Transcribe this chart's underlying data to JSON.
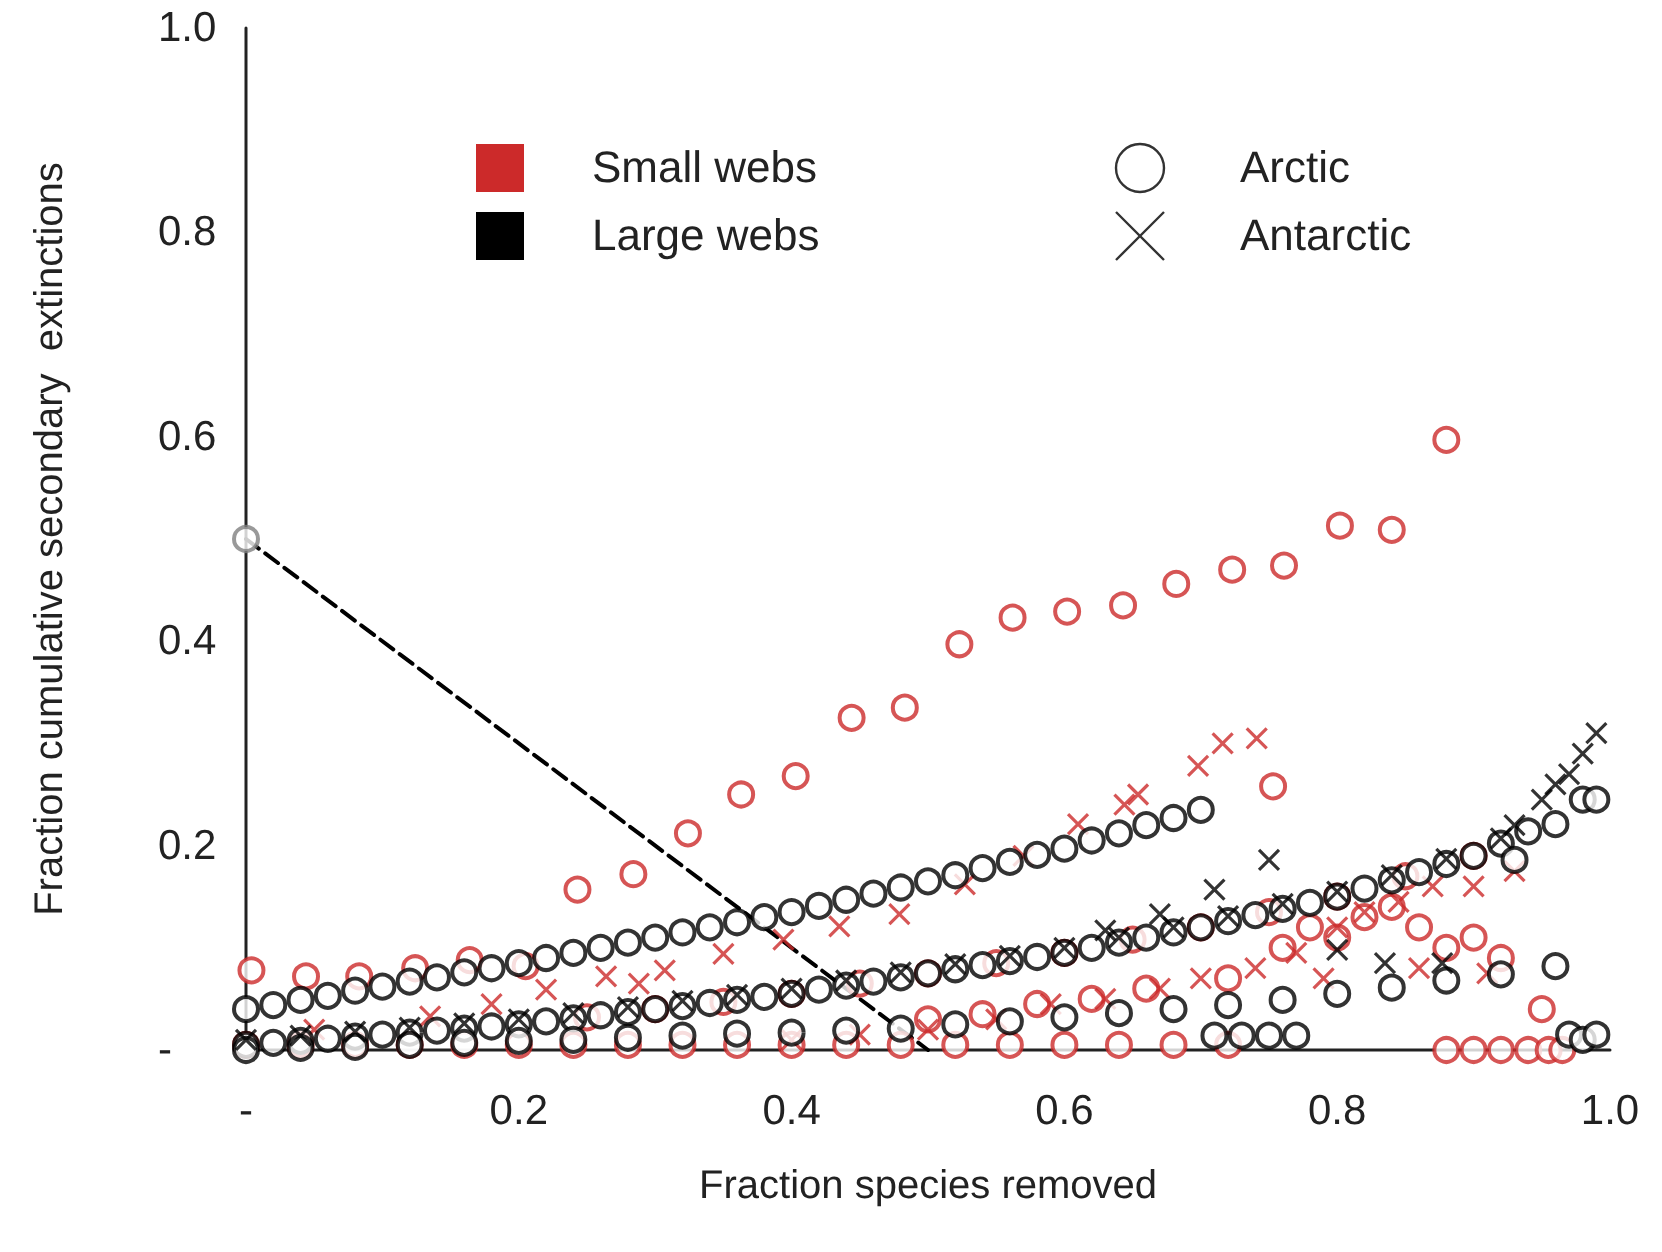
{
  "chart_data": {
    "type": "scatter",
    "xlabel": "Fraction species removed",
    "ylabel": "Fraction cumulative secondary  extinctions",
    "xlim": [
      0,
      1.0
    ],
    "ylim": [
      0,
      1.0
    ],
    "xticks": [
      {
        "value": 0,
        "label": "-"
      },
      0.2,
      0.4,
      0.6,
      0.8,
      {
        "value": 1,
        "label": "1.0"
      }
    ],
    "yticks": [
      {
        "value": 0,
        "label": "-"
      },
      0.2,
      0.4,
      0.6,
      0.8,
      {
        "value": 1,
        "label": "1.0"
      }
    ],
    "grid": false,
    "annotations": [
      "Small webs",
      "Large webs",
      "Arctic",
      "Antarctic"
    ],
    "series": [
      {
        "type": "line",
        "color": "#000000",
        "line_style": "dashed",
        "marker": "none",
        "x": [
          0,
          0.5
        ],
        "values": [
          0.5,
          0
        ]
      },
      {
        "color": "#cc2a2a",
        "marker": "circle",
        "x": [
          0.004,
          0.044,
          0.083,
          0.124,
          0.164,
          0.205,
          0.243,
          0.284,
          0.324,
          0.363,
          0.403,
          0.444,
          0.483,
          0.523,
          0.562,
          0.602,
          0.643,
          0.682,
          0.723,
          0.761,
          0.802,
          0.84,
          0.88,
          0.25,
          0.3,
          0.35,
          0.4,
          0.45,
          0.5,
          0.55,
          0.6,
          0.65,
          0.7,
          0.75,
          0.8,
          0.85,
          0.9,
          0,
          0.04,
          0.08,
          0.12,
          0.16,
          0.2,
          0.24,
          0.28,
          0.32,
          0.36,
          0.4,
          0.44,
          0.48,
          0.52,
          0.56,
          0.6,
          0.64,
          0.68,
          0.72,
          0.88,
          0.9,
          0.92,
          0.94,
          0.955,
          0.965,
          0.753,
          0.72,
          0.76,
          0.78,
          0.8,
          0.82,
          0.84,
          0.86,
          0.88,
          0.9,
          0.92,
          0.95,
          0.66,
          0.62,
          0.58,
          0.54,
          0.5
        ],
        "values": [
          0.078,
          0.072,
          0.072,
          0.08,
          0.088,
          0.082,
          0.157,
          0.172,
          0.212,
          0.25,
          0.268,
          0.325,
          0.335,
          0.397,
          0.423,
          0.429,
          0.435,
          0.456,
          0.47,
          0.474,
          0.513,
          0.509,
          0.597,
          0.032,
          0.04,
          0.047,
          0.055,
          0.065,
          0.075,
          0.085,
          0.095,
          0.108,
          0.12,
          0.135,
          0.15,
          0.17,
          0.19,
          0.005,
          0.005,
          0.005,
          0.005,
          0.005,
          0.005,
          0.005,
          0.005,
          0.005,
          0.005,
          0.005,
          0.005,
          0.005,
          0.005,
          0.005,
          0.005,
          0.005,
          0.005,
          0.005,
          0,
          0,
          0,
          0,
          0,
          0,
          0.258,
          0.07,
          0.1,
          0.12,
          0.11,
          0.13,
          0.14,
          0.12,
          0.1,
          0.11,
          0.09,
          0.04,
          0.06,
          0.05,
          0.045,
          0.035,
          0.03
        ]
      },
      {
        "color": "#cc2a2a",
        "marker": "cross",
        "x": [
          0.05,
          0.135,
          0.18,
          0.22,
          0.264,
          0.288,
          0.307,
          0.35,
          0.394,
          0.435,
          0.479,
          0.527,
          0.57,
          0.61,
          0.644,
          0.654,
          0.698,
          0.716,
          0.741,
          0.55,
          0.59,
          0.63,
          0.67,
          0.7,
          0.74,
          0.77,
          0.8,
          0.82,
          0.845,
          0.87,
          0.9,
          0.93,
          0.79,
          0.86,
          0.91,
          0.45,
          0.5,
          0.4
        ],
        "values": [
          0.02,
          0.033,
          0.045,
          0.059,
          0.072,
          0.065,
          0.078,
          0.094,
          0.108,
          0.121,
          0.133,
          0.162,
          0.19,
          0.221,
          0.24,
          0.25,
          0.278,
          0.3,
          0.305,
          0.03,
          0.045,
          0.05,
          0.06,
          0.07,
          0.08,
          0.095,
          0.12,
          0.135,
          0.145,
          0.16,
          0.16,
          0.175,
          0.07,
          0.08,
          0.075,
          0.015,
          0.02,
          0.01
        ]
      },
      {
        "color": "#000000",
        "marker": "circle",
        "x": [
          0,
          0.02,
          0.04,
          0.06,
          0.08,
          0.1,
          0.12,
          0.14,
          0.16,
          0.18,
          0.2,
          0.22,
          0.24,
          0.26,
          0.28,
          0.3,
          0.32,
          0.34,
          0.36,
          0.38,
          0.4,
          0.42,
          0.44,
          0.46,
          0.48,
          0.5,
          0.52,
          0.54,
          0.56,
          0.58,
          0.6,
          0.62,
          0.64,
          0.66,
          0.68,
          0.7,
          0,
          0.02,
          0.04,
          0.06,
          0.08,
          0.1,
          0.12,
          0.14,
          0.16,
          0.18,
          0.2,
          0.22,
          0.24,
          0.26,
          0.28,
          0.3,
          0.32,
          0.34,
          0.36,
          0.38,
          0.4,
          0.42,
          0.44,
          0.46,
          0.48,
          0.5,
          0.52,
          0.54,
          0.56,
          0.58,
          0.6,
          0.62,
          0.64,
          0.66,
          0.68,
          0.7,
          0.72,
          0.74,
          0.76,
          0.78,
          0.8,
          0.82,
          0.84,
          0.86,
          0.88,
          0.9,
          0.92,
          0.93,
          0.94,
          0.96,
          0.98,
          0.99,
          0,
          0.04,
          0.08,
          0.12,
          0.16,
          0.2,
          0.24,
          0.28,
          0.32,
          0.36,
          0.4,
          0.44,
          0.48,
          0.52,
          0.56,
          0.6,
          0.64,
          0.68,
          0.72,
          0.76,
          0.8,
          0.84,
          0.88,
          0.92,
          0.96,
          0.71,
          0.73,
          0.75,
          0.77,
          0.97,
          0.98,
          0.99
        ],
        "values": [
          0.04,
          0.044,
          0.049,
          0.053,
          0.058,
          0.062,
          0.067,
          0.071,
          0.076,
          0.08,
          0.085,
          0.09,
          0.095,
          0.1,
          0.105,
          0.11,
          0.115,
          0.12,
          0.125,
          0.13,
          0.135,
          0.141,
          0.147,
          0.153,
          0.159,
          0.165,
          0.171,
          0.178,
          0.184,
          0.191,
          0.197,
          0.205,
          0.212,
          0.22,
          0.227,
          0.235,
          0.005,
          0.007,
          0.009,
          0.011,
          0.013,
          0.015,
          0.017,
          0.019,
          0.021,
          0.023,
          0.025,
          0.028,
          0.031,
          0.034,
          0.037,
          0.04,
          0.043,
          0.046,
          0.049,
          0.052,
          0.055,
          0.059,
          0.063,
          0.067,
          0.071,
          0.075,
          0.079,
          0.083,
          0.087,
          0.091,
          0.095,
          0.1,
          0.105,
          0.11,
          0.115,
          0.12,
          0.126,
          0.132,
          0.138,
          0.144,
          0.15,
          0.158,
          0.166,
          0.174,
          0.182,
          0.19,
          0.202,
          0.186,
          0.214,
          0.221,
          0.245,
          0.245,
          0.0,
          0.002,
          0.003,
          0.005,
          0.007,
          0.009,
          0.01,
          0.012,
          0.014,
          0.016,
          0.017,
          0.019,
          0.021,
          0.025,
          0.028,
          0.032,
          0.036,
          0.04,
          0.044,
          0.049,
          0.055,
          0.061,
          0.068,
          0.074,
          0.082,
          0.014,
          0.014,
          0.014,
          0.014,
          0.015,
          0.01,
          0.015
        ]
      },
      {
        "color": "#000000",
        "marker": "cross",
        "x": [
          0,
          0.04,
          0.08,
          0.12,
          0.16,
          0.2,
          0.24,
          0.28,
          0.32,
          0.36,
          0.4,
          0.44,
          0.48,
          0.52,
          0.56,
          0.6,
          0.64,
          0.68,
          0.72,
          0.76,
          0.8,
          0.84,
          0.88,
          0.92,
          0.93,
          0.95,
          0.96,
          0.97,
          0.98,
          0.99,
          0.63,
          0.67,
          0.71,
          0.75,
          0.8,
          0.835,
          0.877
        ],
        "values": [
          0.01,
          0.014,
          0.018,
          0.022,
          0.026,
          0.03,
          0.036,
          0.042,
          0.048,
          0.054,
          0.06,
          0.068,
          0.076,
          0.084,
          0.092,
          0.1,
          0.11,
          0.12,
          0.131,
          0.143,
          0.155,
          0.171,
          0.187,
          0.207,
          0.22,
          0.245,
          0.26,
          0.27,
          0.29,
          0.31,
          0.117,
          0.133,
          0.157,
          0.186,
          0.098,
          0.085,
          0.085
        ]
      },
      {
        "color": "#808080",
        "marker": "circle",
        "x": [
          0
        ],
        "values": [
          0.5
        ]
      }
    ]
  }
}
